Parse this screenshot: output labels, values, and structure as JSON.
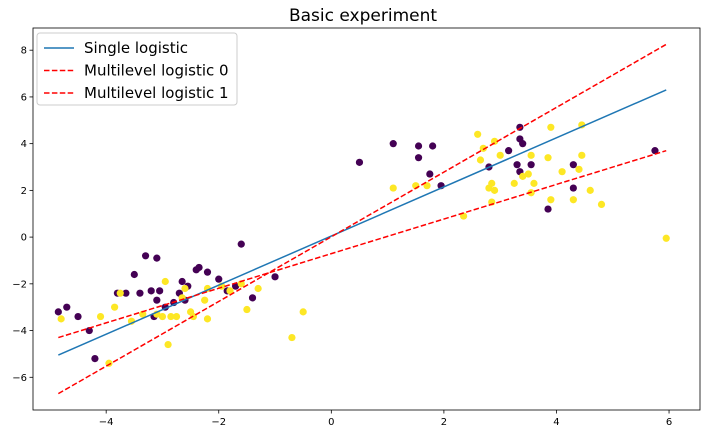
{
  "chart_data": {
    "type": "scatter",
    "title": "Basic experiment",
    "xlabel": "",
    "ylabel": "",
    "xlim": [
      -5.3,
      6.55
    ],
    "ylim": [
      -7.4,
      8.95
    ],
    "xticks": [
      -4,
      -2,
      0,
      2,
      4,
      6
    ],
    "yticks": [
      -6,
      -4,
      -2,
      0,
      2,
      4,
      6,
      8
    ],
    "grid": false,
    "legend_position": "top-left",
    "colors": {
      "single": "#1f77b4",
      "multilevel": "#ff0000",
      "group0": "#440154",
      "group1": "#fde725"
    },
    "lines": [
      {
        "name": "Single logistic",
        "style": "solid",
        "x": [
          -4.85,
          5.95
        ],
        "y": [
          -5.05,
          6.3
        ]
      },
      {
        "name": "Multilevel logistic 0",
        "style": "dashed",
        "x": [
          -4.85,
          5.95
        ],
        "y": [
          -6.7,
          8.25
        ]
      },
      {
        "name": "Multilevel logistic 1",
        "style": "dashed",
        "x": [
          -4.85,
          5.95
        ],
        "y": [
          -4.3,
          3.7
        ]
      }
    ],
    "points_group0": [
      [
        -4.85,
        -3.2
      ],
      [
        -4.7,
        -3.0
      ],
      [
        -4.5,
        -3.4
      ],
      [
        -4.3,
        -4.0
      ],
      [
        -4.2,
        -5.2
      ],
      [
        -3.8,
        -2.4
      ],
      [
        -3.65,
        -2.4
      ],
      [
        -3.5,
        -1.6
      ],
      [
        -3.4,
        -2.4
      ],
      [
        -3.3,
        -0.8
      ],
      [
        -3.2,
        -2.3
      ],
      [
        -3.15,
        -3.4
      ],
      [
        -3.1,
        -2.7
      ],
      [
        -3.1,
        -0.9
      ],
      [
        -3.05,
        -2.3
      ],
      [
        -2.95,
        -3.0
      ],
      [
        -2.8,
        -2.8
      ],
      [
        -2.7,
        -2.4
      ],
      [
        -2.65,
        -1.9
      ],
      [
        -2.6,
        -2.7
      ],
      [
        -2.55,
        -2.1
      ],
      [
        -2.4,
        -1.4
      ],
      [
        -2.35,
        -1.3
      ],
      [
        -2.2,
        -1.5
      ],
      [
        -2.0,
        -1.8
      ],
      [
        -1.85,
        -2.3
      ],
      [
        -1.7,
        -2.1
      ],
      [
        -1.6,
        -0.3
      ],
      [
        -1.4,
        -2.6
      ],
      [
        -1.0,
        -1.7
      ],
      [
        0.5,
        3.2
      ],
      [
        1.1,
        4.0
      ],
      [
        1.55,
        3.9
      ],
      [
        1.55,
        3.4
      ],
      [
        1.75,
        2.7
      ],
      [
        1.8,
        3.9
      ],
      [
        1.95,
        2.2
      ],
      [
        2.8,
        3.0
      ],
      [
        3.15,
        3.7
      ],
      [
        3.3,
        3.1
      ],
      [
        3.35,
        4.7
      ],
      [
        3.35,
        4.2
      ],
      [
        3.35,
        2.8
      ],
      [
        3.4,
        4.0
      ],
      [
        3.55,
        3.1
      ],
      [
        3.85,
        1.2
      ],
      [
        4.3,
        3.1
      ],
      [
        4.3,
        2.1
      ],
      [
        5.75,
        3.7
      ]
    ],
    "points_group1": [
      [
        -4.8,
        -3.5
      ],
      [
        -4.1,
        -3.4
      ],
      [
        -3.95,
        -5.4
      ],
      [
        -3.85,
        -3.0
      ],
      [
        -3.75,
        -2.4
      ],
      [
        -3.55,
        -3.6
      ],
      [
        -3.35,
        -3.3
      ],
      [
        -3.1,
        -3.3
      ],
      [
        -3.0,
        -3.4
      ],
      [
        -2.95,
        -1.9
      ],
      [
        -2.9,
        -4.6
      ],
      [
        -2.85,
        -3.4
      ],
      [
        -2.75,
        -3.4
      ],
      [
        -2.65,
        -2.6
      ],
      [
        -2.6,
        -2.2
      ],
      [
        -2.5,
        -3.2
      ],
      [
        -2.45,
        -3.4
      ],
      [
        -2.25,
        -2.7
      ],
      [
        -2.2,
        -2.2
      ],
      [
        -2.2,
        -3.5
      ],
      [
        -1.95,
        -2.1
      ],
      [
        -1.8,
        -2.3
      ],
      [
        -1.6,
        -2.0
      ],
      [
        -1.5,
        -3.1
      ],
      [
        -1.3,
        -2.2
      ],
      [
        -0.7,
        -4.3
      ],
      [
        -0.5,
        -3.2
      ],
      [
        1.1,
        2.1
      ],
      [
        1.5,
        2.2
      ],
      [
        1.7,
        2.2
      ],
      [
        2.35,
        0.9
      ],
      [
        2.6,
        4.4
      ],
      [
        2.65,
        3.3
      ],
      [
        2.7,
        3.8
      ],
      [
        2.8,
        2.1
      ],
      [
        2.85,
        2.3
      ],
      [
        2.85,
        1.5
      ],
      [
        2.9,
        2.0
      ],
      [
        2.9,
        4.1
      ],
      [
        3.0,
        3.5
      ],
      [
        3.25,
        2.3
      ],
      [
        3.4,
        2.6
      ],
      [
        3.5,
        2.7
      ],
      [
        3.55,
        3.5
      ],
      [
        3.55,
        1.9
      ],
      [
        3.6,
        2.3
      ],
      [
        3.85,
        3.4
      ],
      [
        3.9,
        4.7
      ],
      [
        3.9,
        1.6
      ],
      [
        4.1,
        2.8
      ],
      [
        4.3,
        1.6
      ],
      [
        4.4,
        2.9
      ],
      [
        4.45,
        3.5
      ],
      [
        4.45,
        4.8
      ],
      [
        4.6,
        2.0
      ],
      [
        4.8,
        1.4
      ],
      [
        5.95,
        -0.05
      ]
    ],
    "legend": [
      {
        "label": "Single logistic",
        "style": "solid"
      },
      {
        "label": "Multilevel logistic 0",
        "style": "dashed"
      },
      {
        "label": "Multilevel logistic 1",
        "style": "dashed"
      }
    ]
  }
}
